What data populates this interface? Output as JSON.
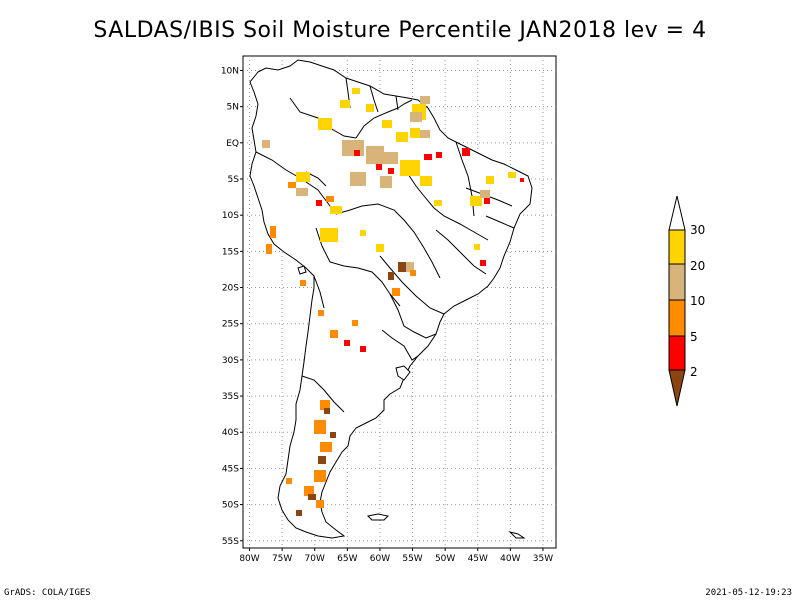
{
  "title": "SALDAS/IBIS Soil Moisture Percentile JAN2018 lev = 4",
  "footer": {
    "left": "GrADS: COLA/IGES",
    "right": "2021-05-12-19:23"
  },
  "map": {
    "lon_range": [
      -81,
      -33
    ],
    "lat_range": [
      -56,
      12
    ],
    "lat_ticks": [
      {
        "value": 10,
        "label": "10N"
      },
      {
        "value": 5,
        "label": "5N"
      },
      {
        "value": 0,
        "label": "EQ"
      },
      {
        "value": -5,
        "label": "5S"
      },
      {
        "value": -10,
        "label": "10S"
      },
      {
        "value": -15,
        "label": "15S"
      },
      {
        "value": -20,
        "label": "20S"
      },
      {
        "value": -25,
        "label": "25S"
      },
      {
        "value": -30,
        "label": "30S"
      },
      {
        "value": -35,
        "label": "35S"
      },
      {
        "value": -40,
        "label": "40S"
      },
      {
        "value": -45,
        "label": "45S"
      },
      {
        "value": -50,
        "label": "50S"
      },
      {
        "value": -55,
        "label": "55S"
      }
    ],
    "lon_ticks": [
      {
        "value": -80,
        "label": "80W"
      },
      {
        "value": -75,
        "label": "75W"
      },
      {
        "value": -70,
        "label": "70W"
      },
      {
        "value": -65,
        "label": "65W"
      },
      {
        "value": -60,
        "label": "60W"
      },
      {
        "value": -55,
        "label": "55W"
      },
      {
        "value": -50,
        "label": "50W"
      },
      {
        "value": -45,
        "label": "45W"
      },
      {
        "value": -40,
        "label": "40W"
      },
      {
        "value": -35,
        "label": "35W"
      }
    ]
  },
  "colorbar": {
    "levels": [
      "30",
      "20",
      "10",
      "5",
      "2"
    ],
    "colors": {
      "above_30": "#ffffff",
      "20_30": "#ffd400",
      "10_20": "#d8b37a",
      "5_10": "#ff8c00",
      "2_5": "#ff0000",
      "below_2": "#8b4513"
    }
  }
}
